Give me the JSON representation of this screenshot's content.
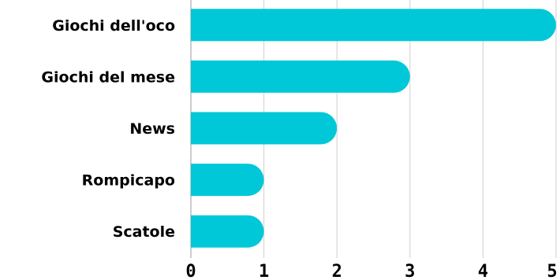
{
  "chart_data": {
    "type": "bar",
    "orientation": "horizontal",
    "categories": [
      "Giochi dell'oco",
      "Giochi del mese",
      "News",
      "Rompicapo",
      "Scatole"
    ],
    "values": [
      5,
      3,
      2,
      1,
      1
    ],
    "xlim": [
      0,
      5
    ],
    "xticks": [
      "0",
      "1",
      "2",
      "3",
      "4",
      "5"
    ],
    "grid": true,
    "bar_color": "#00c8d8",
    "bar_shape": "rounded-end"
  }
}
